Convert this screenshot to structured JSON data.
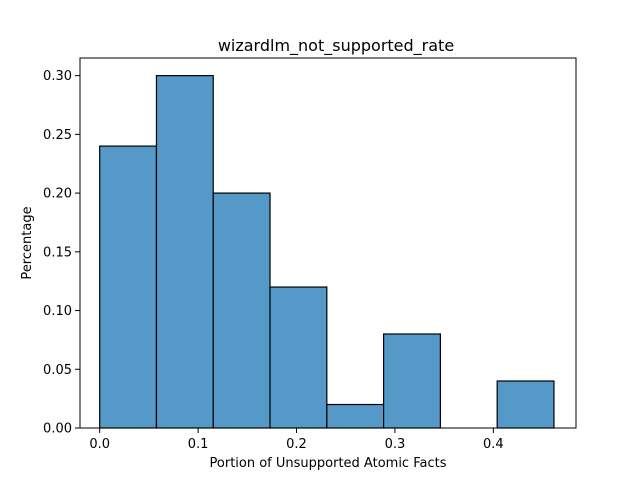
{
  "chart_data": {
    "type": "bar",
    "title": "wizardlm_not_supported_rate",
    "xlabel": "Portion of Unsupported Atomic Facts",
    "ylabel": "Percentage",
    "xlim": [
      -0.02,
      0.484
    ],
    "ylim": [
      0.0,
      0.315
    ],
    "xticks": [
      0.0,
      0.1,
      0.2,
      0.3,
      0.4
    ],
    "xtick_labels": [
      "0.0",
      "0.1",
      "0.2",
      "0.3",
      "0.4"
    ],
    "yticks": [
      0.0,
      0.05,
      0.1,
      0.15,
      0.2,
      0.25,
      0.3
    ],
    "ytick_labels": [
      "0.00",
      "0.05",
      "0.10",
      "0.15",
      "0.20",
      "0.25",
      "0.30"
    ],
    "bins": [
      {
        "start": 0.0,
        "end": 0.0577,
        "value": 0.24
      },
      {
        "start": 0.0577,
        "end": 0.1154,
        "value": 0.3
      },
      {
        "start": 0.1154,
        "end": 0.1731,
        "value": 0.2
      },
      {
        "start": 0.1731,
        "end": 0.2308,
        "value": 0.12
      },
      {
        "start": 0.2308,
        "end": 0.2885,
        "value": 0.02
      },
      {
        "start": 0.2885,
        "end": 0.3462,
        "value": 0.08
      },
      {
        "start": 0.3462,
        "end": 0.4039,
        "value": 0.0
      },
      {
        "start": 0.4039,
        "end": 0.4616,
        "value": 0.04
      }
    ],
    "bar_color": "#5599c8",
    "edge_color": "#000000",
    "grid": false,
    "legend": "none"
  }
}
